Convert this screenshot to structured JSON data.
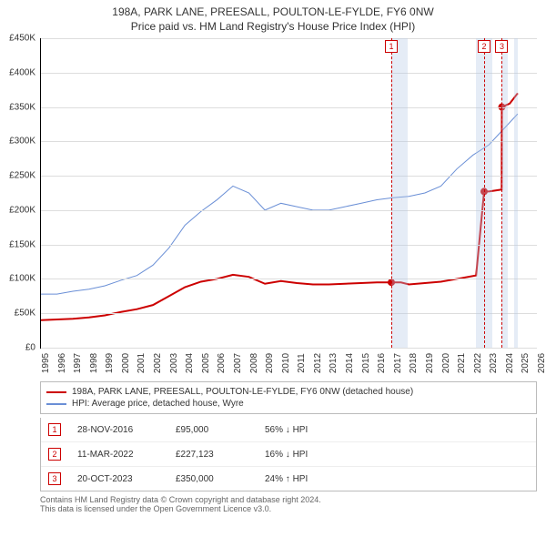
{
  "title": "198A, PARK LANE, PREESALL, POULTON-LE-FYLDE, FY6 0NW",
  "subtitle": "Price paid vs. HM Land Registry's House Price Index (HPI)",
  "chart": {
    "type": "line",
    "background_color": "#ffffff",
    "grid_color": "#dddddd",
    "axis_color": "#000000",
    "title_fontsize": 12,
    "label_fontsize": 10,
    "y": {
      "min": 0,
      "max": 450000,
      "step": 50000,
      "ticks": [
        "£0",
        "£50K",
        "£100K",
        "£150K",
        "£200K",
        "£250K",
        "£300K",
        "£350K",
        "£400K",
        "£450K"
      ]
    },
    "x": {
      "min": 1995,
      "max": 2026,
      "ticks": [
        1995,
        1996,
        1997,
        1998,
        1999,
        2000,
        2001,
        2002,
        2003,
        2004,
        2005,
        2006,
        2007,
        2008,
        2009,
        2010,
        2011,
        2012,
        2013,
        2014,
        2015,
        2016,
        2017,
        2018,
        2019,
        2020,
        2021,
        2022,
        2023,
        2024,
        2025,
        2026
      ]
    },
    "shaded_bands": [
      {
        "from": 2016.9,
        "to": 2017.9,
        "color": "rgba(180,200,230,0.35)"
      },
      {
        "from": 2022.2,
        "to": 2023.2,
        "color": "rgba(180,200,230,0.35)"
      },
      {
        "from": 2023.8,
        "to": 2024.2,
        "color": "rgba(180,200,230,0.35)"
      },
      {
        "from": 2024.6,
        "to": 2024.8,
        "color": "rgba(180,200,230,0.35)"
      }
    ],
    "series": [
      {
        "name": "198A, PARK LANE, PREESALL, POULTON-LE-FYLDE, FY6 0NW (detached house)",
        "color": "#cc0000",
        "line_width": 2,
        "data": [
          [
            1995,
            40000
          ],
          [
            1996,
            41000
          ],
          [
            1997,
            42000
          ],
          [
            1998,
            44000
          ],
          [
            1999,
            47000
          ],
          [
            2000,
            52000
          ],
          [
            2001,
            56000
          ],
          [
            2002,
            62000
          ],
          [
            2003,
            75000
          ],
          [
            2004,
            88000
          ],
          [
            2005,
            96000
          ],
          [
            2006,
            100000
          ],
          [
            2007,
            106000
          ],
          [
            2008,
            103000
          ],
          [
            2009,
            93000
          ],
          [
            2010,
            97000
          ],
          [
            2011,
            94000
          ],
          [
            2012,
            92000
          ],
          [
            2013,
            92000
          ],
          [
            2014,
            93000
          ],
          [
            2015,
            94000
          ],
          [
            2016,
            95000
          ],
          [
            2016.9,
            95000
          ],
          [
            2017.5,
            95000
          ],
          [
            2018,
            92000
          ],
          [
            2019,
            94000
          ],
          [
            2020,
            96000
          ],
          [
            2021,
            100000
          ],
          [
            2022.2,
            105000
          ],
          [
            2022.7,
            227123
          ],
          [
            2023.0,
            227123
          ],
          [
            2023.8,
            230000
          ],
          [
            2023.81,
            350000
          ],
          [
            2024.3,
            355000
          ],
          [
            2024.8,
            370000
          ]
        ],
        "markers": [
          {
            "id": "1",
            "x": 2016.9,
            "y": 95000
          },
          {
            "id": "2",
            "x": 2022.7,
            "y": 227123
          },
          {
            "id": "3",
            "x": 2023.81,
            "y": 350000
          }
        ]
      },
      {
        "name": "HPI: Average price, detached house, Wyre",
        "color": "#6a8fd6",
        "line_width": 1,
        "data": [
          [
            1995,
            78000
          ],
          [
            1996,
            78000
          ],
          [
            1997,
            82000
          ],
          [
            1998,
            85000
          ],
          [
            1999,
            90000
          ],
          [
            2000,
            98000
          ],
          [
            2001,
            105000
          ],
          [
            2002,
            120000
          ],
          [
            2003,
            145000
          ],
          [
            2004,
            178000
          ],
          [
            2005,
            198000
          ],
          [
            2006,
            215000
          ],
          [
            2007,
            235000
          ],
          [
            2008,
            225000
          ],
          [
            2009,
            200000
          ],
          [
            2010,
            210000
          ],
          [
            2011,
            205000
          ],
          [
            2012,
            200000
          ],
          [
            2013,
            200000
          ],
          [
            2014,
            205000
          ],
          [
            2015,
            210000
          ],
          [
            2016,
            215000
          ],
          [
            2017,
            218000
          ],
          [
            2018,
            220000
          ],
          [
            2019,
            225000
          ],
          [
            2020,
            235000
          ],
          [
            2021,
            260000
          ],
          [
            2022,
            280000
          ],
          [
            2023,
            295000
          ],
          [
            2024,
            320000
          ],
          [
            2024.8,
            340000
          ]
        ]
      }
    ]
  },
  "legend": {
    "items": [
      {
        "color": "#cc0000",
        "label": "198A, PARK LANE, PREESALL, POULTON-LE-FYLDE, FY6 0NW (detached house)"
      },
      {
        "color": "#6a8fd6",
        "label": "HPI: Average price, detached house, Wyre"
      }
    ]
  },
  "events": [
    {
      "id": "1",
      "date": "28-NOV-2016",
      "price": "£95,000",
      "delta": "56% ↓ HPI"
    },
    {
      "id": "2",
      "date": "11-MAR-2022",
      "price": "£227,123",
      "delta": "16% ↓ HPI"
    },
    {
      "id": "3",
      "date": "20-OCT-2023",
      "price": "£350,000",
      "delta": "24% ↑ HPI"
    }
  ],
  "footer": {
    "line1": "Contains HM Land Registry data © Crown copyright and database right 2024.",
    "line2": "This data is licensed under the Open Government Licence v3.0."
  }
}
